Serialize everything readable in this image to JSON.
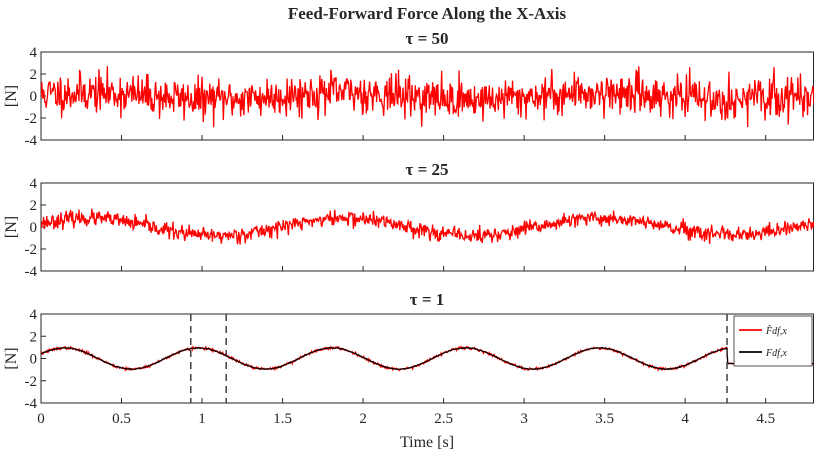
{
  "figure_title": "Feed-Forward Force Along the X-Axis",
  "xlabel": "Time [s]",
  "colors": {
    "estimate": "#ff0000",
    "reference": "#000000",
    "marker": "#404040"
  },
  "chart_data": [
    {
      "type": "line",
      "title": "τ = 50",
      "ylabel": "[N]",
      "xlim": [
        0,
        4.8
      ],
      "ylim": [
        -4,
        4
      ],
      "yticks": [
        "4",
        "2",
        "0",
        "-2",
        "-4"
      ],
      "grid": false,
      "series": [
        {
          "color": "#ff0000",
          "signal": {
            "amplitude": 0.3,
            "period": 1.6,
            "phase": 0.0,
            "noise": 0.9,
            "seed": 11
          }
        }
      ]
    },
    {
      "type": "line",
      "title": "τ = 25",
      "ylabel": "[N]",
      "xlim": [
        0,
        4.8
      ],
      "ylim": [
        -4,
        4
      ],
      "yticks": [
        "4",
        "2",
        "0",
        "-2",
        "-4"
      ],
      "grid": false,
      "series": [
        {
          "color": "#ff0000",
          "signal": {
            "amplitude": 0.8,
            "period": 1.6,
            "phase": 0.0,
            "noise": 0.35,
            "seed": 23
          }
        }
      ]
    },
    {
      "type": "line",
      "title": "τ = 1",
      "ylabel": "[N]",
      "xlabel": "Time [s]",
      "xlim": [
        0,
        4.8
      ],
      "ylim": [
        -4,
        4
      ],
      "xticks": [
        "0",
        "0.5",
        "1",
        "1.5",
        "2",
        "2.5",
        "3",
        "3.5",
        "4",
        "4.5"
      ],
      "yticks": [
        "4",
        "2",
        "0",
        "-2",
        "-4"
      ],
      "grid": false,
      "legend_position": "top-right",
      "legend": [
        {
          "label": "F̂df,x",
          "color": "#ff0000"
        },
        {
          "label": "Fdf,x",
          "color": "#000000"
        }
      ],
      "vlines": [
        0.93,
        1.15,
        4.26
      ],
      "series": [
        {
          "color": "#ff0000",
          "signal": {
            "amplitude": 0.95,
            "period": 0.83,
            "phase": 0.0,
            "noise": 0.06,
            "seed": 37,
            "hold_until": 4.26,
            "hold_value": -0.45
          }
        },
        {
          "color": "#000000",
          "signal": {
            "amplitude": 0.95,
            "period": 0.83,
            "phase": 0.0,
            "noise": 0.02,
            "seed": 41,
            "hold_until": 4.26,
            "hold_value": -0.45
          }
        }
      ]
    }
  ]
}
